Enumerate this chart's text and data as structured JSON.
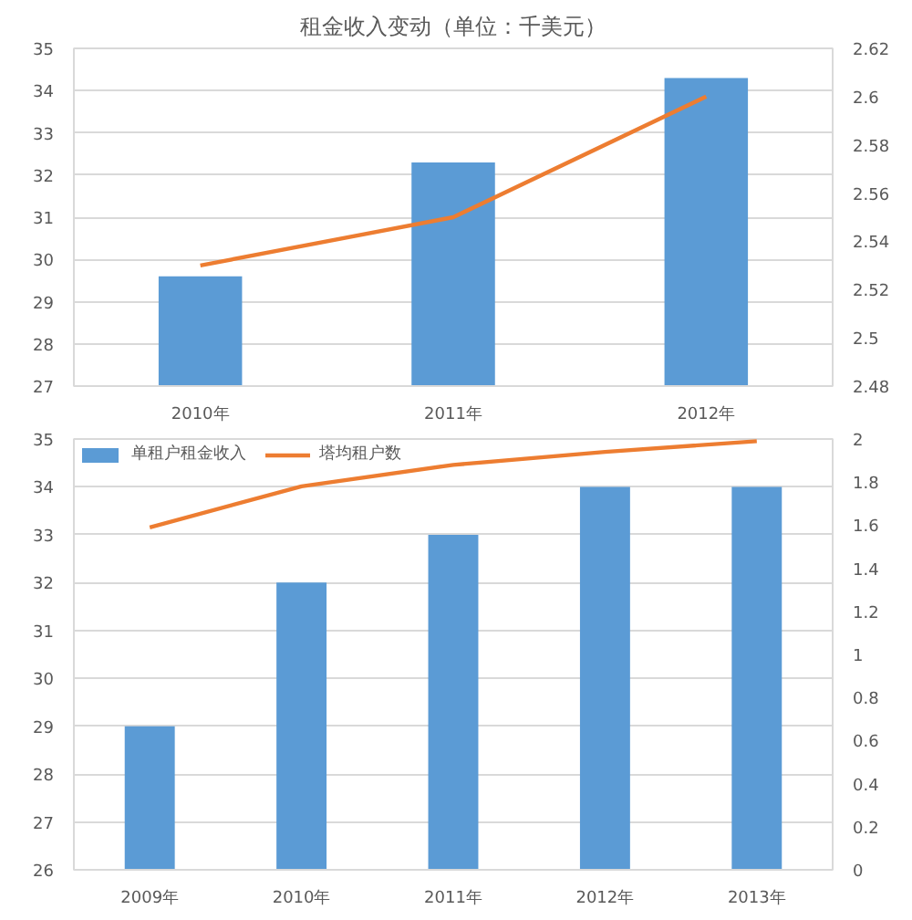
{
  "chart_data": [
    {
      "type": "bar",
      "title": "租金收入变动（单位：千美元）",
      "categories": [
        "2010年",
        "2011年",
        "2012年"
      ],
      "series": [
        {
          "color": "#5b9bd5",
          "values": [
            29.6,
            32.3,
            34.3
          ]
        },
        {
          "type": "line",
          "axis": "y2",
          "color": "#ed7d31",
          "values": [
            2.53,
            2.55,
            2.6
          ]
        }
      ],
      "ylim": [
        27,
        35
      ],
      "yticks": [
        27,
        28,
        29,
        30,
        31,
        32,
        33,
        34,
        35
      ],
      "y2lim": [
        2.48,
        2.62
      ],
      "y2ticks": [
        2.48,
        2.5,
        2.52,
        2.54,
        2.56,
        2.58,
        2.6,
        2.62
      ],
      "grid": "y",
      "legend": false,
      "marker": "none"
    },
    {
      "type": "bar",
      "categories": [
        "2009年",
        "2010年",
        "2011年",
        "2012年",
        "2013年"
      ],
      "series": [
        {
          "name": "单租户租金收入",
          "color": "#5b9bd5",
          "values": [
            29,
            32,
            33,
            34,
            34
          ]
        },
        {
          "type": "line",
          "axis": "y2",
          "name": "塔均租户数",
          "color": "#ed7d31",
          "values": [
            1.59,
            1.78,
            1.88,
            1.94,
            1.99
          ]
        }
      ],
      "ylim": [
        26,
        35
      ],
      "yticks": [
        26,
        27,
        28,
        29,
        30,
        31,
        32,
        33,
        34,
        35
      ],
      "y2lim": [
        0,
        2
      ],
      "y2ticks": [
        0,
        0.2,
        0.4,
        0.6,
        0.8,
        1,
        1.2,
        1.4,
        1.6,
        1.8,
        2
      ],
      "grid": "y",
      "legend": "top left",
      "marker": "none"
    }
  ]
}
